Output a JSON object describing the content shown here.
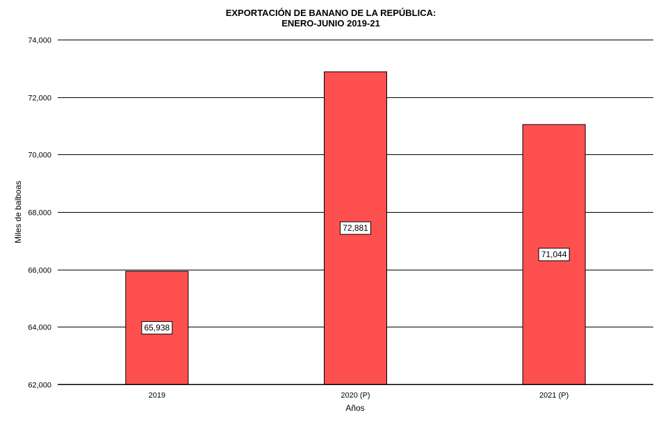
{
  "chart_data": {
    "type": "bar",
    "title": "EXPORTACIÓN  DE  BANANO  DE  LA  REPÚBLICA:",
    "subtitle": "ENERO-JUNIO  2019-21",
    "xlabel": "Años",
    "ylabel": "Miles de balboas",
    "categories": [
      "2019",
      "2020 (P)",
      "2021 (P)"
    ],
    "values": [
      65938,
      72881,
      71044
    ],
    "data_labels": [
      "65,938",
      "72,881",
      "71,044"
    ],
    "ylim": [
      62000,
      74000
    ],
    "yticks": [
      62000,
      64000,
      66000,
      68000,
      70000,
      72000,
      74000
    ],
    "ytick_labels": [
      "62,000",
      "64,000",
      "66,000",
      "68,000",
      "70,000",
      "72,000",
      "74,000"
    ],
    "grid": true,
    "bar_color": "#FF5050"
  }
}
